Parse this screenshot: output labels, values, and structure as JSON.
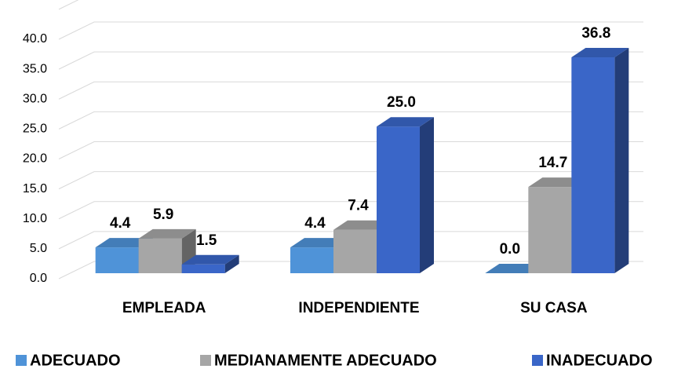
{
  "chart_data": {
    "type": "bar3d",
    "categories": [
      "EMPLEADA",
      "INDEPENDIENTE",
      "SU CASA"
    ],
    "series": [
      {
        "name": "ADECUADO",
        "color": "#4f93d8",
        "values": [
          4.4,
          4.4,
          0.0
        ],
        "value_labels": [
          "4.4",
          "4.4",
          "0.0"
        ]
      },
      {
        "name": "MEDIANAMENTE ADECUADO",
        "color": "#a6a6a6",
        "values": [
          5.9,
          7.4,
          14.7
        ],
        "value_labels": [
          "5.9",
          "7.4",
          "14.7"
        ]
      },
      {
        "name": "INADECUADO",
        "color": "#3a66c8",
        "values": [
          1.5,
          25.0,
          36.8
        ],
        "value_labels": [
          "1.5",
          "25.0",
          "36.8"
        ]
      }
    ],
    "ylim": [
      0,
      45
    ],
    "yticks": [
      {
        "value": 0,
        "label": "0.0"
      },
      {
        "value": 5,
        "label": "5.0"
      },
      {
        "value": 10,
        "label": "10.0"
      },
      {
        "value": 15,
        "label": "15.0"
      },
      {
        "value": 20,
        "label": "20.0"
      },
      {
        "value": 25,
        "label": "25.0"
      },
      {
        "value": 30,
        "label": "30.0"
      },
      {
        "value": 35,
        "label": "35.0"
      },
      {
        "value": 40,
        "label": "40.0"
      }
    ],
    "grid": true,
    "legend": "bottom"
  }
}
